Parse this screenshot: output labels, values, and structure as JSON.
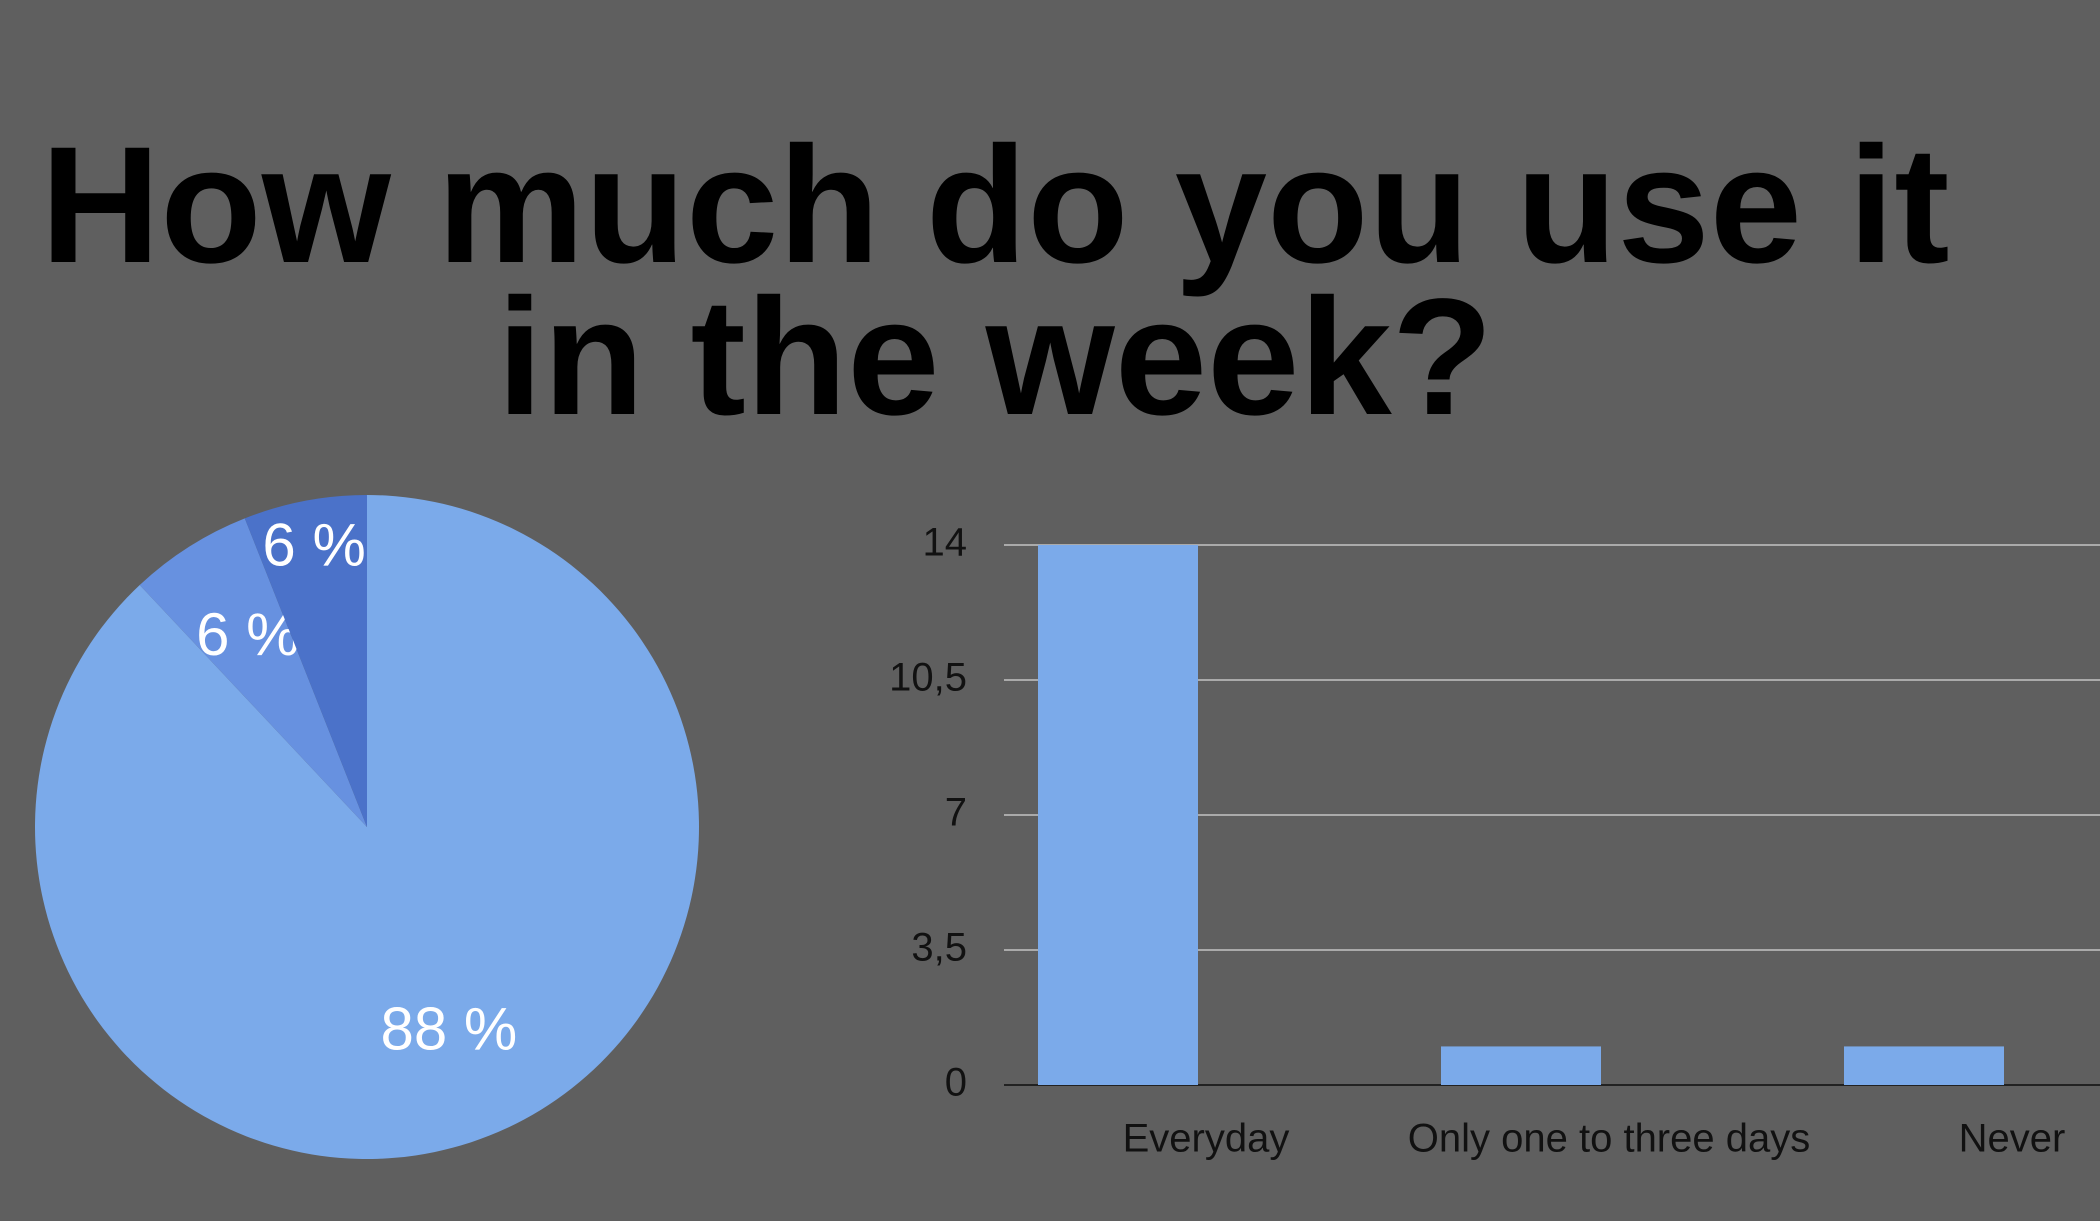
{
  "title": "How much do you use it in the week?",
  "chart_data": [
    {
      "type": "pie",
      "values": [
        88,
        6,
        6
      ],
      "value_labels": [
        "88 %",
        "6 %",
        "6 %"
      ],
      "colors": [
        "#7baaea",
        "#6791e0",
        "#4b72c9"
      ]
    },
    {
      "type": "bar",
      "categories": [
        "Everyday",
        "Only one to three days",
        "Never"
      ],
      "values": [
        14,
        1,
        1
      ],
      "color": "#7baaea",
      "ylim": [
        0,
        14
      ],
      "yticks": [
        0,
        {
          "value": 3.5,
          "label": "3,5"
        },
        7,
        {
          "value": 10.5,
          "label": "10,5"
        },
        14
      ],
      "grid": true
    }
  ]
}
